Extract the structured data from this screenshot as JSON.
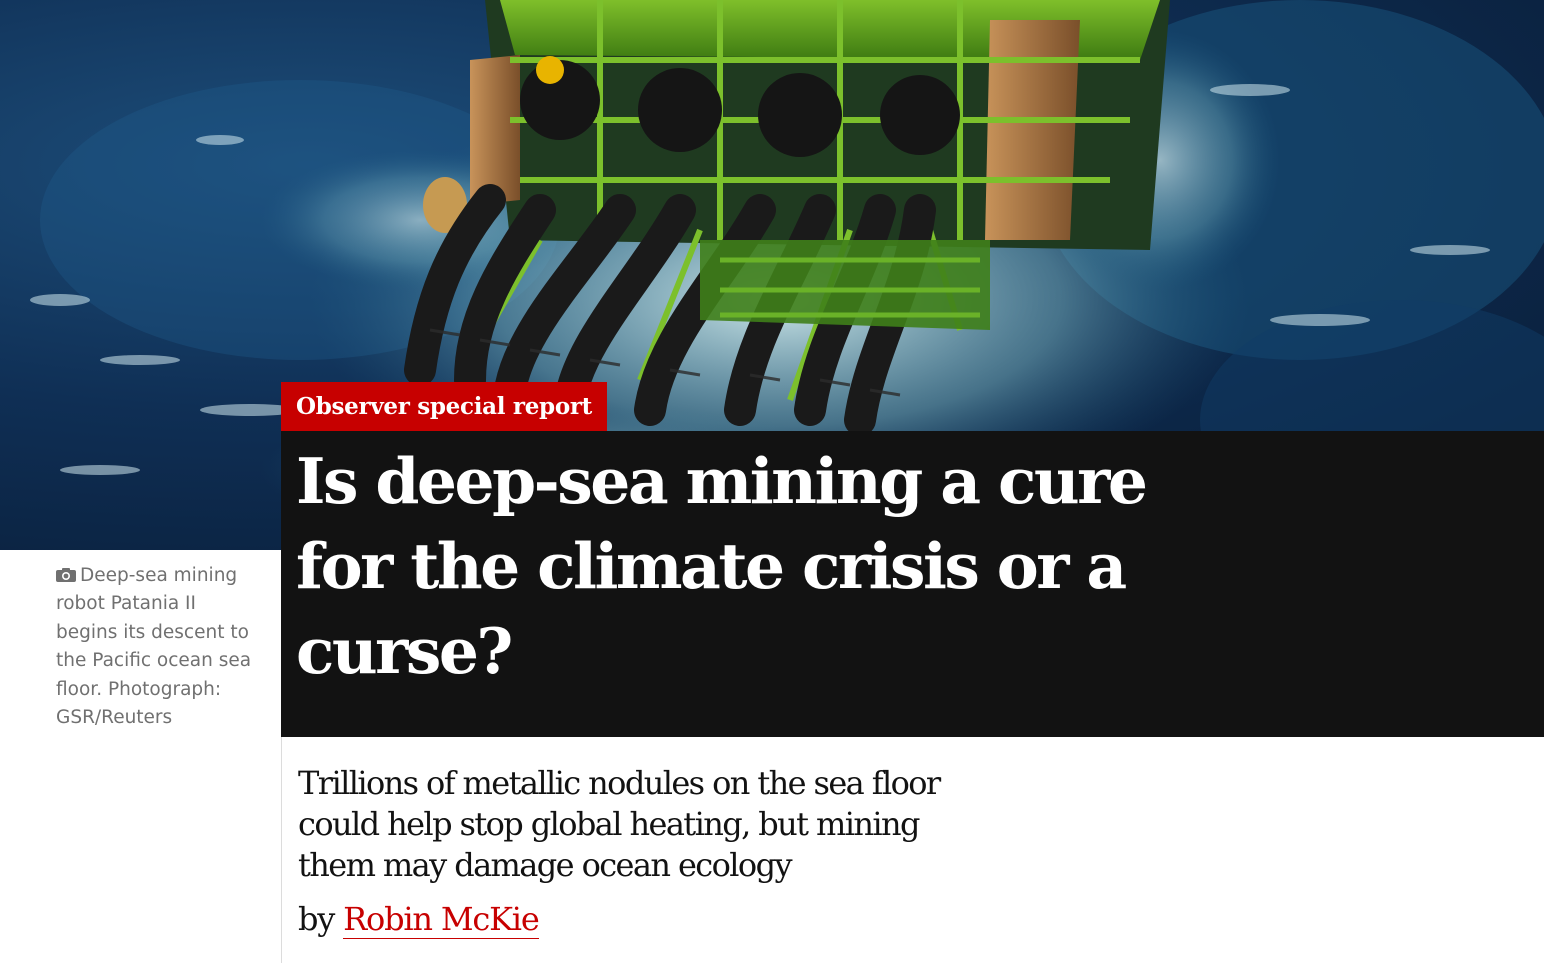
{
  "article": {
    "kicker": "Observer special report",
    "headline": "Is deep-sea mining a cure for the climate crisis or a curse?",
    "caption": "Deep-sea mining robot Patania II begins its descent to the Pacific ocean sea floor. Photograph: GSR/Reuters",
    "standfirst": "Trillions of metallic nodules on the sea floor could help stop global heating, but mining them may damage ocean ecology",
    "byline_prefix": "by",
    "author": "Robin McKie"
  },
  "icons": {
    "caption": "camera-icon"
  },
  "colors": {
    "kicker_bg": "#c70000",
    "headline_bg": "#121212",
    "author_link": "#c70000",
    "caption_text": "#707070"
  }
}
